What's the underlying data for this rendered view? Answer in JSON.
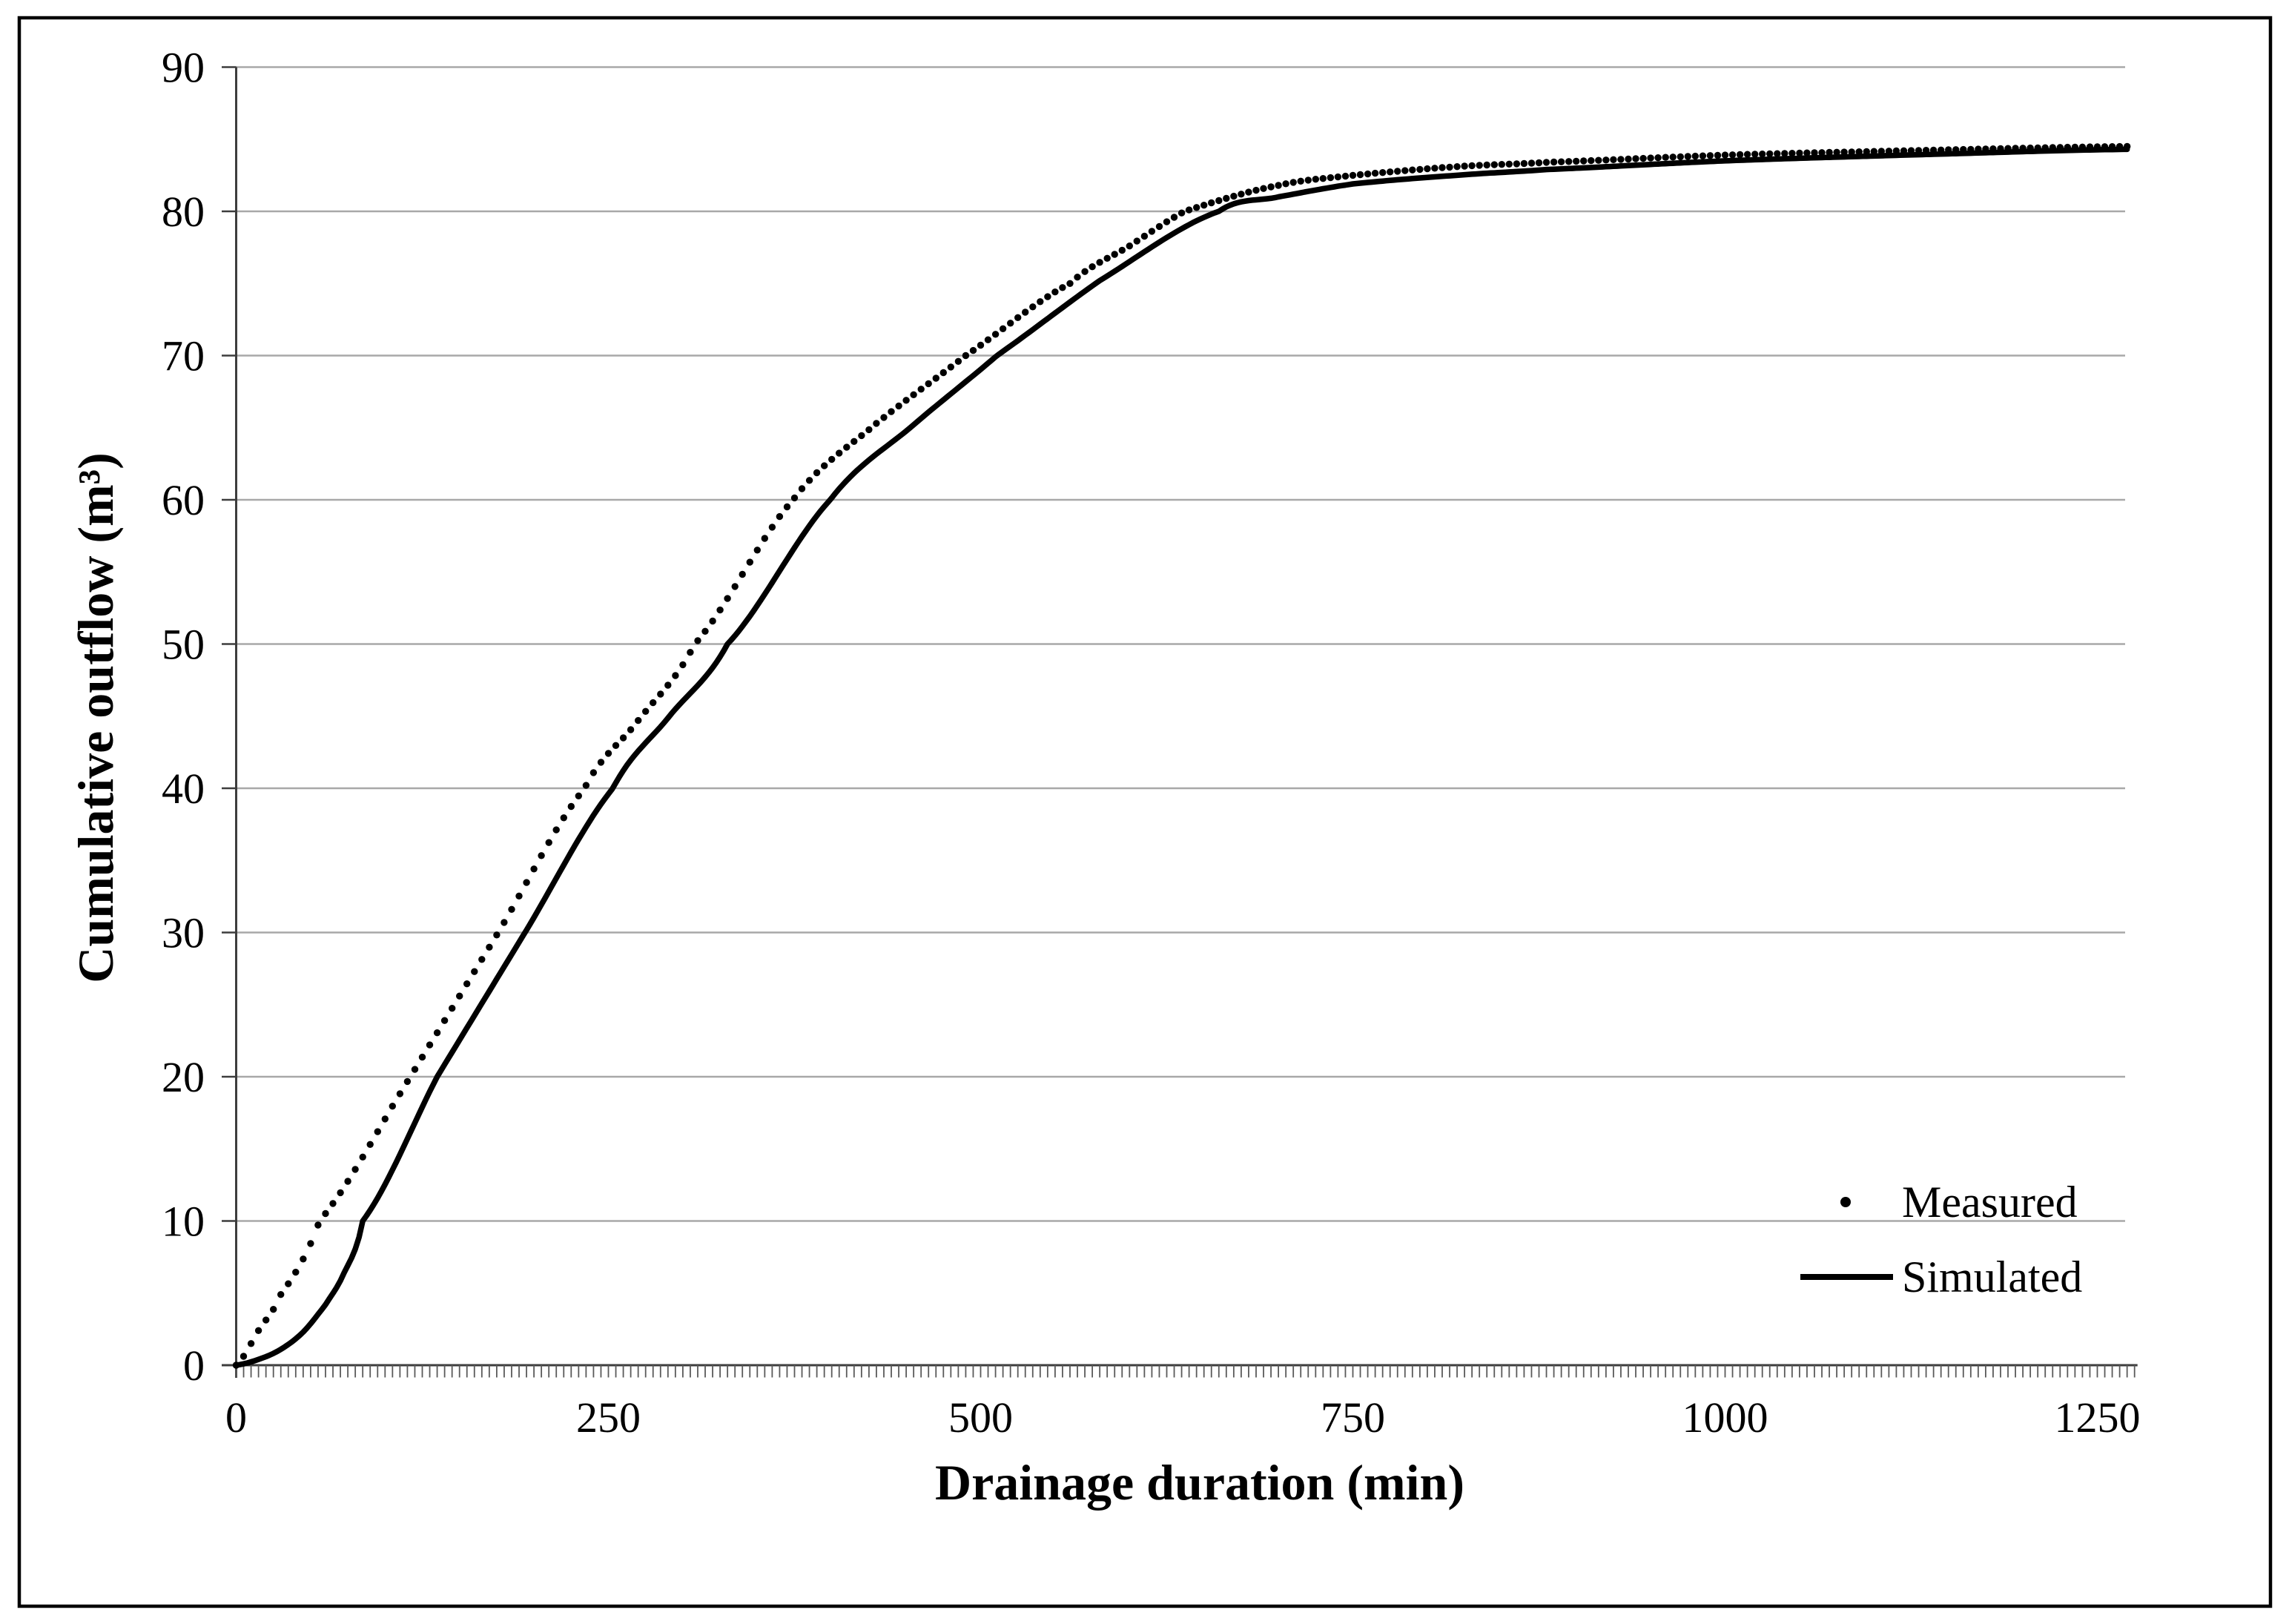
{
  "chart_data": {
    "type": "line",
    "title": "",
    "xlabel": "Drainage duration (min)",
    "ylabel": "Cumulative outflow (m³)",
    "xlim": [
      0,
      1278
    ],
    "ylim": [
      0,
      90
    ],
    "x_ticks": [
      0,
      250,
      500,
      750,
      1000,
      1250
    ],
    "y_ticks": [
      0,
      10,
      20,
      30,
      40,
      50,
      60,
      70,
      80,
      90
    ],
    "x_minor_tick_step_min": 5,
    "grid": "horizontal-gray",
    "legend_position": "inside-lower-right",
    "colors": {
      "series": "#000000",
      "gridline": "#a8a8a8",
      "axis": "#3d3d3d",
      "tick": "#5a5a5a",
      "border": "#000000",
      "background": "#ffffff"
    },
    "series": [
      {
        "name": "Measured",
        "style": "dots",
        "marker": "circle",
        "marker_radius_px": 4.7,
        "sample_step_min": 5,
        "color": "#000000",
        "points": [
          [
            0,
            0
          ],
          [
            15,
            2.4
          ],
          [
            30,
            4.9
          ],
          [
            56,
            10
          ],
          [
            117,
            20
          ],
          [
            176,
            30
          ],
          [
            234,
            40
          ],
          [
            270,
            44.7
          ],
          [
            308,
            50
          ],
          [
            374,
            60
          ],
          [
            430,
            65.3
          ],
          [
            490,
            70
          ],
          [
            560,
            75
          ],
          [
            600,
            77.6
          ],
          [
            637,
            80
          ],
          [
            700,
            81.8
          ],
          [
            750,
            82.5
          ],
          [
            820,
            83.1
          ],
          [
            880,
            83.4
          ],
          [
            1000,
            83.9
          ],
          [
            1120,
            84.2
          ],
          [
            1270,
            84.5
          ]
        ]
      },
      {
        "name": "Simulated",
        "style": "solid",
        "stroke_width_px": 7.5,
        "color": "#000000",
        "points": [
          [
            0,
            0
          ],
          [
            15,
            0.4
          ],
          [
            30,
            1.1
          ],
          [
            45,
            2.3
          ],
          [
            60,
            4.2
          ],
          [
            72,
            6.3
          ],
          [
            85,
            10
          ],
          [
            135,
            20
          ],
          [
            194,
            30
          ],
          [
            253,
            40
          ],
          [
            291,
            45
          ],
          [
            330,
            50
          ],
          [
            399,
            60
          ],
          [
            455,
            65.2
          ],
          [
            511,
            70
          ],
          [
            580,
            75.2
          ],
          [
            660,
            80
          ],
          [
            700,
            81.0
          ],
          [
            750,
            81.9
          ],
          [
            820,
            82.5
          ],
          [
            880,
            82.9
          ],
          [
            1000,
            83.5
          ],
          [
            1120,
            83.9
          ],
          [
            1270,
            84.3
          ]
        ]
      }
    ]
  }
}
